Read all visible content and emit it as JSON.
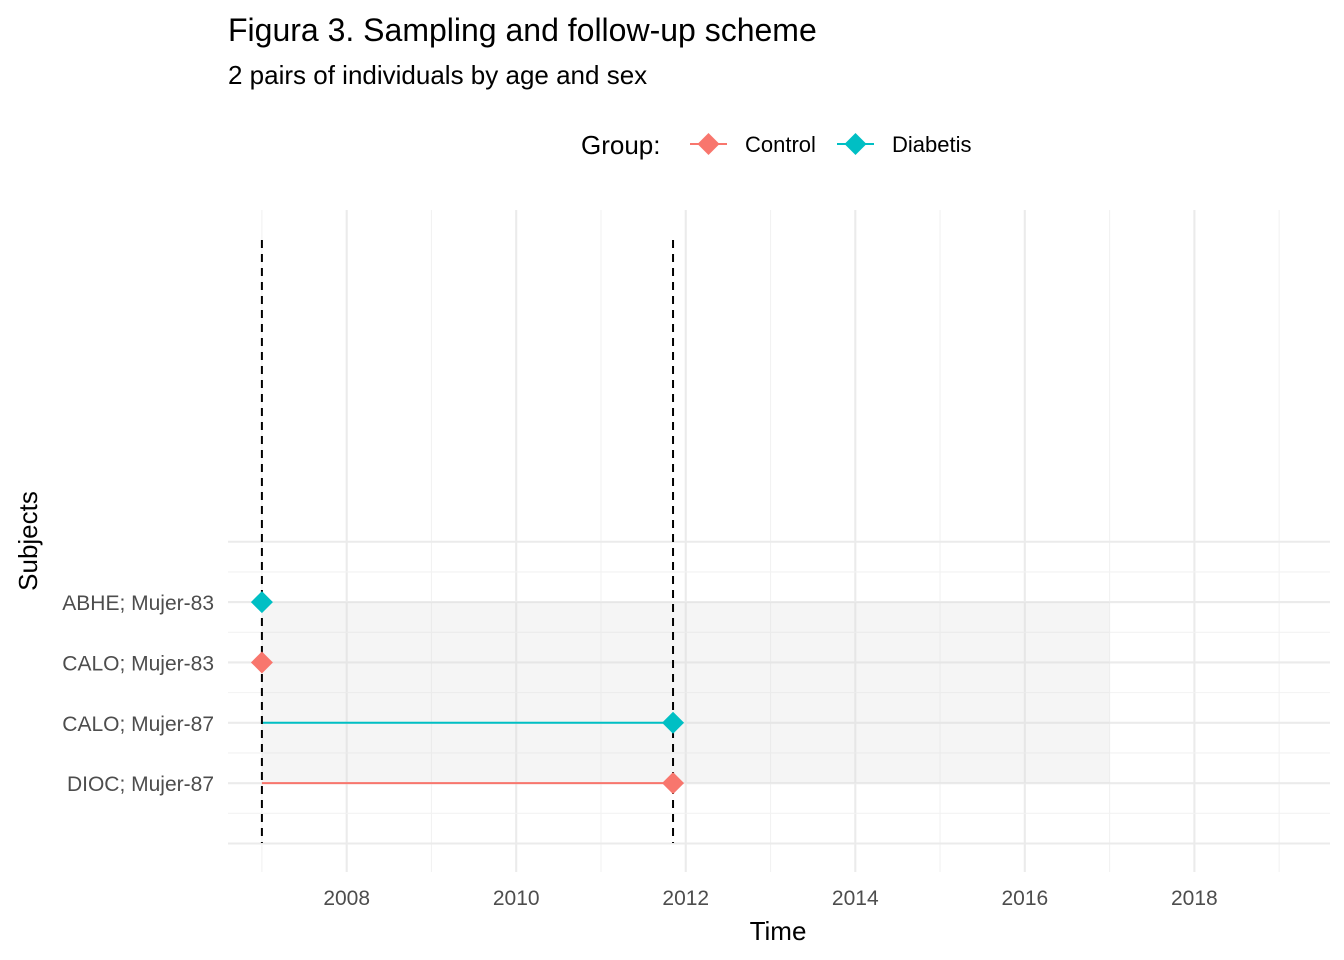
{
  "chart_data": {
    "type": "scatter",
    "title": "Figura 3. Sampling and follow-up scheme",
    "subtitle": "2 pairs of individuals by age and sex",
    "xlabel": "Time",
    "ylabel": "Subjects",
    "xlim": [
      2006.6,
      2019.6
    ],
    "x_ticks": [
      2008,
      2010,
      2012,
      2014,
      2016,
      2018
    ],
    "x_tick_labels": [
      "2008",
      "2010",
      "2012",
      "2014",
      "2016",
      "2018"
    ],
    "categories": [
      "DIOC; Mujer-87",
      "CALO; Mujer-87",
      "CALO; Mujer-83",
      "ABHE; Mujer-83"
    ],
    "legend": {
      "title": "Group:",
      "placement": "top",
      "entries": [
        {
          "name": "Control",
          "color": "#F8766D"
        },
        {
          "name": "Diabetis",
          "color": "#00BFC4"
        }
      ]
    },
    "vlines": [
      2007.0,
      2011.85
    ],
    "shaded_region": {
      "x": [
        2007.0,
        2017.0
      ],
      "categories": [
        "DIOC; Mujer-87",
        "ABHE; Mujer-83"
      ]
    },
    "series": [
      {
        "name": "Control",
        "color": "#F8766D",
        "points": [
          {
            "subject": "CALO; Mujer-83",
            "start": 2007.0,
            "end": 2007.0
          },
          {
            "subject": "DIOC; Mujer-87",
            "start": 2007.0,
            "end": 2011.85
          }
        ]
      },
      {
        "name": "Diabetis",
        "color": "#00BFC4",
        "points": [
          {
            "subject": "ABHE; Mujer-83",
            "start": 2007.0,
            "end": 2007.0
          },
          {
            "subject": "CALO; Mujer-87",
            "start": 2007.0,
            "end": 2011.85
          }
        ]
      }
    ],
    "grid": true
  }
}
